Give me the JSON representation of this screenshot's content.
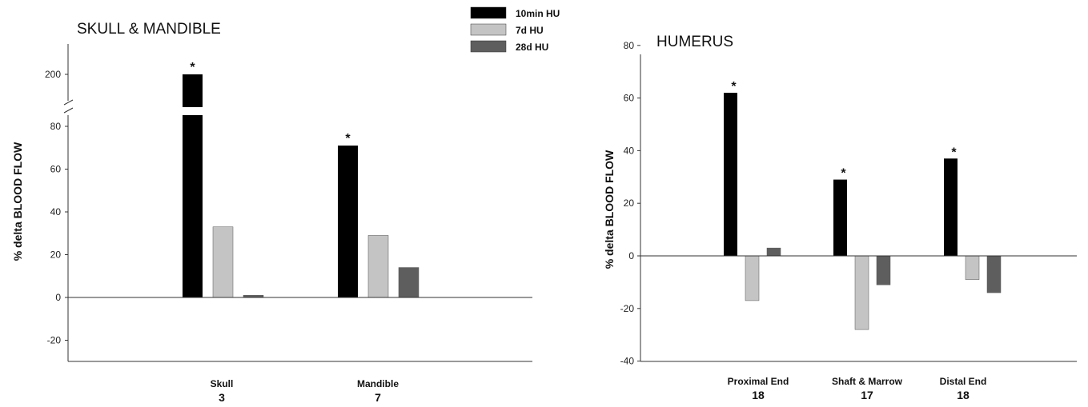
{
  "legend": {
    "entries": [
      {
        "label": "10min HU",
        "color": "#000000"
      },
      {
        "label": "7d HU",
        "color": "#c4c4c4"
      },
      {
        "label": "28d HU",
        "color": "#5e5e5e"
      }
    ]
  },
  "chart_data": [
    {
      "type": "bar",
      "title": "SKULL & MANDIBLE",
      "ylabel": "% delta BLOOD FLOW",
      "xlabel": "",
      "ylim": [
        -30,
        80
      ],
      "y_break": {
        "upper_tick": 200,
        "note": "broken axis; 10min Skull bar extends to 200"
      },
      "yticks": [
        "-20",
        "0",
        "20",
        "40",
        "60",
        "80"
      ],
      "categories": [
        {
          "label": "Skull",
          "n": "3"
        },
        {
          "label": "Mandible",
          "n": "7"
        }
      ],
      "series": [
        {
          "name": "10min HU",
          "values": [
            200,
            71
          ]
        },
        {
          "name": "7d HU",
          "values": [
            33,
            29
          ]
        },
        {
          "name": "28d HU",
          "values": [
            1,
            14
          ]
        }
      ],
      "significance": [
        {
          "series": 0,
          "category": 0,
          "mark": "*"
        },
        {
          "series": 0,
          "category": 1,
          "mark": "*"
        }
      ]
    },
    {
      "type": "bar",
      "title": "HUMERUS",
      "ylabel": "% delta BLOOD FLOW",
      "xlabel": "",
      "ylim": [
        -40,
        80
      ],
      "yticks": [
        "-40",
        "-20",
        "0",
        "20",
        "40",
        "60",
        "80"
      ],
      "categories": [
        {
          "label": "Proximal End",
          "n": "18"
        },
        {
          "label": "Shaft & Marrow",
          "n": "17"
        },
        {
          "label": "Distal End",
          "n": "18"
        }
      ],
      "series": [
        {
          "name": "10min HU",
          "values": [
            62,
            29,
            37
          ]
        },
        {
          "name": "7d HU",
          "values": [
            -17,
            -28,
            -9
          ]
        },
        {
          "name": "28d HU",
          "values": [
            3,
            -11,
            -14
          ]
        }
      ],
      "significance": [
        {
          "series": 0,
          "category": 0,
          "mark": "*"
        },
        {
          "series": 0,
          "category": 1,
          "mark": "*"
        },
        {
          "series": 0,
          "category": 2,
          "mark": "*"
        }
      ]
    }
  ]
}
